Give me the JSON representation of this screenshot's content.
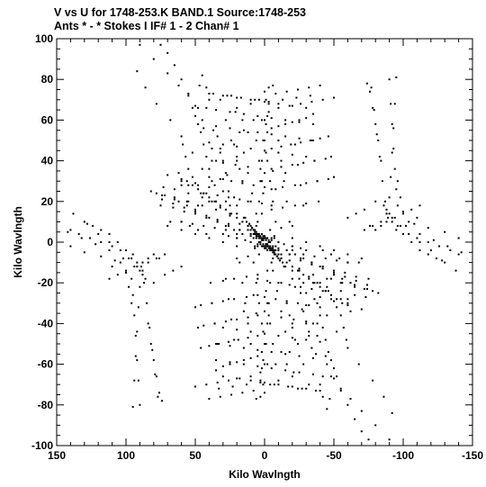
{
  "header": {
    "line1": "V vs U for 1748-253.K BAND.1   Source:1748-253",
    "line2": "Ants * - *     Stokes I  IF# 1 - 2  Chan# 1"
  },
  "chart_data": {
    "type": "scatter",
    "xlabel": "Kilo Wavlngth",
    "ylabel": "Kilo Wavlngth",
    "xlim": [
      150,
      -150
    ],
    "ylim": [
      -100,
      100
    ],
    "x_ticks": [
      150,
      100,
      50,
      0,
      -50,
      -100,
      -150
    ],
    "y_ticks": [
      100,
      80,
      60,
      40,
      20,
      0,
      -20,
      -40,
      -60,
      -80,
      -100
    ],
    "x_tick_labels": [
      "150",
      "100",
      "50",
      "0",
      "-50",
      "-100",
      "-150"
    ],
    "y_tick_labels": [
      "100",
      "80",
      "60",
      "40",
      "20",
      "0",
      "-20",
      "-40",
      "-60",
      "-80",
      "-100"
    ],
    "grid": false,
    "marker_color": "#000000",
    "point_pairs": [
      [
        90,
        97
      ],
      [
        80,
        90
      ],
      [
        70,
        83
      ],
      [
        62,
        77
      ],
      [
        55,
        72
      ],
      [
        48,
        66
      ],
      [
        44,
        56
      ],
      [
        38,
        46
      ],
      [
        35,
        40
      ],
      [
        30,
        31
      ],
      [
        26,
        25
      ],
      [
        20,
        18
      ],
      [
        14,
        12
      ],
      [
        10,
        8
      ],
      [
        6,
        5
      ],
      [
        3,
        2
      ],
      [
        1,
        1
      ],
      [
        92,
        84
      ],
      [
        86,
        76
      ],
      [
        78,
        68
      ],
      [
        68,
        60
      ],
      [
        60,
        52
      ],
      [
        52,
        44
      ],
      [
        45,
        36
      ],
      [
        36,
        28
      ],
      [
        28,
        20
      ],
      [
        20,
        14
      ],
      [
        12,
        8
      ],
      [
        55,
        28
      ],
      [
        46,
        24
      ],
      [
        38,
        20
      ],
      [
        32,
        17
      ],
      [
        25,
        13
      ],
      [
        18,
        9
      ],
      [
        12,
        6
      ],
      [
        7,
        4
      ],
      [
        4,
        2
      ],
      [
        75,
        18
      ],
      [
        66,
        17
      ],
      [
        58,
        15
      ],
      [
        50,
        14
      ],
      [
        42,
        12
      ],
      [
        34,
        10
      ],
      [
        26,
        8
      ],
      [
        18,
        6
      ],
      [
        10,
        3
      ],
      [
        82,
        25
      ],
      [
        74,
        23
      ],
      [
        65,
        21
      ],
      [
        56,
        20
      ],
      [
        48,
        18
      ],
      [
        68,
        10
      ],
      [
        60,
        10
      ],
      [
        52,
        9
      ],
      [
        44,
        8
      ],
      [
        36,
        7
      ],
      [
        28,
        6
      ],
      [
        20,
        4
      ],
      [
        -5,
        56
      ],
      [
        -10,
        57
      ],
      [
        -15,
        58
      ],
      [
        -20,
        59
      ],
      [
        -25,
        60
      ],
      [
        -30,
        61
      ],
      [
        -35,
        63
      ],
      [
        -5,
        46
      ],
      [
        -12,
        47
      ],
      [
        -19,
        48
      ],
      [
        -26,
        49
      ],
      [
        -33,
        50
      ],
      [
        -40,
        51
      ],
      [
        -5,
        36
      ],
      [
        -12,
        37
      ],
      [
        -20,
        38
      ],
      [
        -28,
        39
      ],
      [
        -36,
        40
      ],
      [
        -44,
        41
      ],
      [
        -5,
        26
      ],
      [
        -13,
        27
      ],
      [
        -22,
        28
      ],
      [
        -30,
        29
      ],
      [
        -38,
        30
      ],
      [
        -46,
        31
      ],
      [
        -5,
        16
      ],
      [
        -13,
        17
      ],
      [
        -22,
        18
      ],
      [
        -30,
        19
      ],
      [
        -39,
        20
      ],
      [
        -4,
        6
      ],
      [
        -12,
        7
      ],
      [
        -20,
        8
      ],
      [
        -3,
        64
      ],
      [
        -10,
        66
      ],
      [
        -18,
        67
      ],
      [
        -26,
        68
      ],
      [
        -34,
        69
      ],
      [
        -42,
        70
      ],
      [
        -50,
        71
      ],
      [
        -1,
        70
      ],
      [
        -8,
        73
      ],
      [
        -16,
        74
      ],
      [
        -24,
        75
      ],
      [
        -32,
        76
      ],
      [
        -40,
        77
      ],
      [
        0,
        74
      ],
      [
        -3,
        76
      ],
      [
        -6,
        77
      ],
      [
        -4,
        -4
      ],
      [
        -8,
        -6
      ],
      [
        -12,
        -8
      ],
      [
        -16,
        -10
      ],
      [
        -20,
        -12
      ],
      [
        -24,
        -14
      ],
      [
        -28,
        -16
      ],
      [
        -32,
        -18
      ],
      [
        -36,
        -20
      ],
      [
        -40,
        -22
      ],
      [
        -44,
        -24
      ],
      [
        -48,
        -26
      ],
      [
        -52,
        -28
      ],
      [
        -56,
        -30
      ],
      [
        -60,
        -30
      ],
      [
        -10,
        -4
      ],
      [
        -18,
        -6
      ],
      [
        -26,
        -9
      ],
      [
        -34,
        -11
      ],
      [
        -42,
        -13
      ],
      [
        -50,
        -15
      ],
      [
        -58,
        -17
      ],
      [
        -66,
        -19
      ],
      [
        -74,
        -21
      ],
      [
        -15,
        -12
      ],
      [
        -25,
        -14
      ],
      [
        -35,
        -16
      ],
      [
        -45,
        -18
      ],
      [
        -55,
        -20
      ],
      [
        -65,
        -22
      ],
      [
        -72,
        -23
      ],
      [
        -78,
        -24
      ],
      [
        -20,
        2
      ],
      [
        -30,
        0
      ],
      [
        -40,
        -2
      ],
      [
        -50,
        -4
      ],
      [
        -60,
        -6
      ],
      [
        -70,
        -8
      ],
      [
        -10,
        0
      ],
      [
        -20,
        -2
      ],
      [
        -30,
        -4
      ],
      [
        -25,
        -18
      ],
      [
        -35,
        -20
      ],
      [
        -45,
        -22
      ],
      [
        -55,
        -24
      ],
      [
        -65,
        -26
      ],
      [
        -73,
        -27
      ],
      [
        -30,
        -25
      ],
      [
        -40,
        -27
      ],
      [
        -50,
        -29
      ],
      [
        -60,
        -31
      ],
      [
        -70,
        -33
      ],
      [
        5,
        -18
      ],
      [
        -2,
        -19
      ],
      [
        -10,
        -20
      ],
      [
        -18,
        -21
      ],
      [
        -26,
        -22
      ],
      [
        -34,
        -23
      ],
      [
        -42,
        -24
      ],
      [
        8,
        -26
      ],
      [
        0,
        -27
      ],
      [
        -8,
        -28
      ],
      [
        -16,
        -29
      ],
      [
        -24,
        -30
      ],
      [
        -32,
        -31
      ],
      [
        -40,
        -32
      ],
      [
        15,
        -34
      ],
      [
        6,
        -35
      ],
      [
        -3,
        -36
      ],
      [
        -12,
        -37
      ],
      [
        -21,
        -38
      ],
      [
        -30,
        -39
      ],
      [
        -38,
        -40
      ],
      [
        30,
        -42
      ],
      [
        20,
        -43
      ],
      [
        10,
        -44
      ],
      [
        0,
        -45
      ],
      [
        -10,
        -46
      ],
      [
        -20,
        -47
      ],
      [
        -30,
        -48
      ],
      [
        -40,
        -49
      ],
      [
        35,
        -50
      ],
      [
        25,
        -51
      ],
      [
        15,
        -52
      ],
      [
        5,
        -53
      ],
      [
        -5,
        -54
      ],
      [
        -15,
        -55
      ],
      [
        -25,
        -56
      ],
      [
        -35,
        -57
      ],
      [
        35,
        -58
      ],
      [
        25,
        -59
      ],
      [
        15,
        -60
      ],
      [
        5,
        -61
      ],
      [
        -5,
        -62
      ],
      [
        -15,
        -63
      ],
      [
        -25,
        -64
      ],
      [
        -35,
        -65
      ],
      [
        30,
        -66
      ],
      [
        20,
        -67
      ],
      [
        10,
        -68
      ],
      [
        0,
        -69
      ],
      [
        -10,
        -70
      ],
      [
        -20,
        -71
      ],
      [
        -30,
        -72
      ],
      [
        -40,
        -73
      ],
      [
        33,
        -72
      ],
      [
        23,
        -71
      ],
      [
        13,
        -70
      ],
      [
        3,
        -69
      ],
      [
        -7,
        -70
      ],
      [
        -17,
        -71
      ],
      [
        -27,
        -72
      ],
      [
        -37,
        -73
      ],
      [
        -45,
        -60
      ],
      [
        -50,
        -67
      ],
      [
        -55,
        -73
      ],
      [
        -60,
        -80
      ],
      [
        -65,
        -87
      ],
      [
        -70,
        -93
      ],
      [
        -75,
        -97
      ],
      [
        -2,
        -30
      ],
      [
        -4,
        -40
      ],
      [
        -6,
        -50
      ],
      [
        -8,
        -60
      ],
      [
        -10,
        -68
      ],
      [
        8,
        -10
      ],
      [
        6,
        -20
      ],
      [
        4,
        -30
      ],
      [
        2,
        -40
      ],
      [
        0,
        -50
      ],
      [
        -2,
        -60
      ],
      [
        -4,
        -70
      ],
      [
        -12,
        -54
      ],
      [
        -16,
        -60
      ],
      [
        -20,
        -66
      ],
      [
        -40,
        -70
      ],
      [
        -42,
        -76
      ],
      [
        -45,
        -82
      ],
      [
        -48,
        -58
      ],
      [
        -50,
        -62
      ],
      [
        -52,
        -66
      ],
      [
        -38,
        -30
      ],
      [
        -40,
        -36
      ],
      [
        -42,
        -42
      ],
      [
        -44,
        -48
      ],
      [
        -46,
        -54
      ],
      [
        -28,
        -34
      ],
      [
        -30,
        -40
      ],
      [
        -32,
        -46
      ],
      [
        -34,
        -52
      ],
      [
        -18,
        -36
      ],
      [
        -20,
        -42
      ],
      [
        -22,
        -48
      ],
      [
        -55,
        -36
      ],
      [
        -57,
        -42
      ],
      [
        -59,
        -48
      ],
      [
        -60,
        -28
      ],
      [
        -62,
        -34
      ],
      [
        -10,
        50
      ],
      [
        -12,
        40
      ],
      [
        -14,
        30
      ],
      [
        -16,
        20
      ],
      [
        -18,
        10
      ],
      [
        -22,
        48
      ],
      [
        -24,
        38
      ],
      [
        -26,
        28
      ],
      [
        -28,
        18
      ],
      [
        -34,
        50
      ],
      [
        -36,
        40
      ],
      [
        -38,
        30
      ],
      [
        -46,
        52
      ],
      [
        -48,
        42
      ],
      [
        -50,
        32
      ],
      [
        0,
        60
      ],
      [
        1,
        50
      ],
      [
        2,
        40
      ],
      [
        3,
        30
      ],
      [
        4,
        20
      ],
      [
        5,
        10
      ],
      [
        -2,
        54
      ],
      [
        -1,
        44
      ],
      [
        0,
        34
      ],
      [
        1,
        24
      ],
      [
        2,
        14
      ],
      [
        -3,
        68
      ],
      [
        -2,
        62
      ],
      [
        -1,
        58
      ],
      [
        12,
        20
      ],
      [
        16,
        30
      ],
      [
        20,
        40
      ],
      [
        24,
        50
      ],
      [
        28,
        60
      ],
      [
        32,
        70
      ],
      [
        22,
        22
      ],
      [
        27,
        33
      ],
      [
        32,
        44
      ],
      [
        37,
        55
      ],
      [
        42,
        66
      ],
      [
        47,
        77
      ],
      [
        6,
        14
      ],
      [
        9,
        24
      ],
      [
        12,
        34
      ],
      [
        15,
        44
      ],
      [
        18,
        54
      ],
      [
        21,
        64
      ],
      [
        24,
        72
      ],
      [
        16,
        4
      ],
      [
        22,
        6
      ],
      [
        28,
        8
      ],
      [
        34,
        10
      ],
      [
        40,
        12
      ],
      [
        8,
        2
      ],
      [
        14,
        1
      ],
      [
        20,
        2
      ],
      [
        26,
        3
      ],
      [
        40,
        20
      ],
      [
        44,
        24
      ],
      [
        48,
        28
      ],
      [
        52,
        32
      ],
      [
        50,
        16
      ],
      [
        56,
        18
      ],
      [
        62,
        20
      ],
      [
        42,
        4
      ],
      [
        48,
        6
      ],
      [
        54,
        8
      ],
      [
        60,
        10
      ],
      [
        -2,
        -4
      ],
      [
        -6,
        -8
      ],
      [
        2,
        -2
      ],
      [
        4,
        0
      ],
      [
        6,
        2
      ],
      [
        8,
        4
      ],
      [
        10,
        6
      ],
      [
        -1,
        -1
      ],
      [
        -3,
        -2
      ],
      [
        -5,
        -3
      ],
      [
        -7,
        -5
      ],
      [
        -9,
        -7
      ],
      [
        -11,
        -9
      ],
      [
        3,
        3
      ],
      [
        5,
        4
      ],
      [
        7,
        6
      ],
      [
        9,
        7
      ],
      [
        11,
        9
      ],
      [
        13,
        10
      ],
      [
        2,
        1
      ],
      [
        4,
        2
      ],
      [
        6,
        3
      ],
      [
        -2,
        -2
      ],
      [
        -4,
        -3
      ],
      [
        -6,
        -4
      ],
      [
        1,
        2
      ],
      [
        0,
        3
      ],
      [
        -1,
        2
      ],
      [
        1,
        -1
      ],
      [
        0,
        -2
      ],
      [
        -1,
        -3
      ],
      [
        3,
        0
      ],
      [
        5,
        -1
      ],
      [
        -3,
        1
      ],
      [
        -5,
        2
      ],
      [
        7,
        -2
      ],
      [
        -7,
        3
      ],
      [
        138,
        14
      ],
      [
        128,
        9
      ],
      [
        120,
        4
      ],
      [
        112,
        0
      ],
      [
        104,
        -4
      ],
      [
        96,
        -8
      ],
      [
        142,
        5
      ],
      [
        132,
        2
      ],
      [
        122,
        -1
      ],
      [
        112,
        -4
      ],
      [
        102,
        -8
      ],
      [
        94,
        -12
      ],
      [
        140,
        -2
      ],
      [
        130,
        -5
      ],
      [
        118,
        -7
      ],
      [
        108,
        -9
      ],
      [
        96,
        -18
      ],
      [
        95,
        -26
      ],
      [
        94,
        -36
      ],
      [
        93,
        -46
      ],
      [
        92,
        -58
      ],
      [
        91,
        -68
      ],
      [
        90,
        -80
      ],
      [
        100,
        -15
      ],
      [
        98,
        -22
      ],
      [
        96,
        -30
      ],
      [
        88,
        -10
      ],
      [
        84,
        -8
      ],
      [
        80,
        -6
      ],
      [
        76,
        -8
      ],
      [
        84,
        -40
      ],
      [
        82,
        -50
      ],
      [
        80,
        -58
      ],
      [
        78,
        -66
      ],
      [
        76,
        -74
      ],
      [
        74,
        -78
      ],
      [
        92,
        -12
      ],
      [
        90,
        -14
      ],
      [
        88,
        -16
      ],
      [
        86,
        -18
      ],
      [
        -95,
        81
      ],
      [
        -94,
        68
      ],
      [
        -93,
        56
      ],
      [
        -92,
        44
      ],
      [
        -91,
        32
      ],
      [
        -90,
        22
      ],
      [
        -89,
        12
      ],
      [
        -77,
        76
      ],
      [
        -79,
        65
      ],
      [
        -81,
        53
      ],
      [
        -83,
        42
      ],
      [
        -85,
        30
      ],
      [
        -87,
        20
      ],
      [
        -88,
        14
      ],
      [
        -92,
        10
      ],
      [
        -98,
        8
      ],
      [
        -104,
        10
      ],
      [
        -110,
        12
      ],
      [
        -100,
        14
      ],
      [
        -106,
        16
      ],
      [
        -112,
        18
      ],
      [
        -95,
        6
      ],
      [
        -100,
        4
      ],
      [
        -106,
        0
      ],
      [
        -112,
        -4
      ],
      [
        -118,
        -6
      ],
      [
        -124,
        -8
      ],
      [
        -130,
        -10
      ],
      [
        -110,
        2
      ],
      [
        -118,
        0
      ],
      [
        -126,
        -2
      ],
      [
        -134,
        -4
      ],
      [
        -140,
        -6
      ],
      [
        -80,
        20
      ],
      [
        -72,
        16
      ],
      [
        -66,
        14
      ],
      [
        -60,
        12
      ],
      [
        -84,
        10
      ],
      [
        -78,
        8
      ],
      [
        -72,
        6
      ]
    ]
  }
}
